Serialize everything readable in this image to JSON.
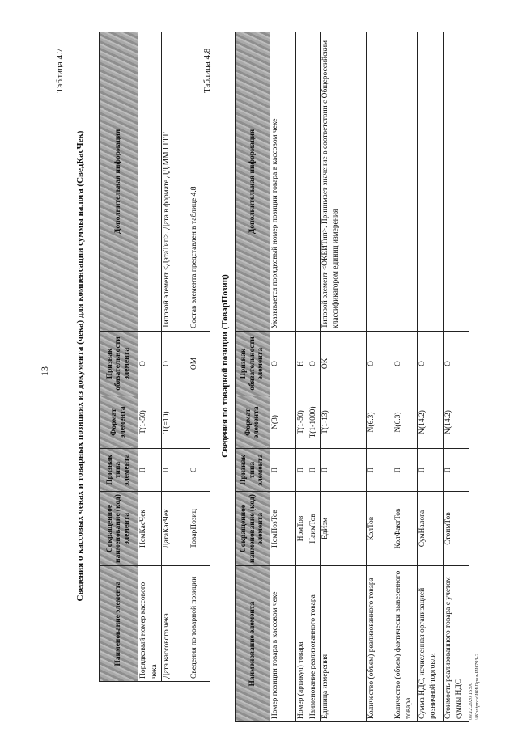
{
  "page_number": "13",
  "table1": {
    "label": "Таблица 4.7",
    "title": "Сведения о кассовых чеках и товарных позициях из документа (чека) для компенсации суммы налога (СведКасЧек)",
    "headers": [
      "Наименование элемента",
      "Сокращенное наименование (код) элемента",
      "Признак типа элемента",
      "Формат элемента",
      "Признак обязательности элемента",
      "Дополнительная информация"
    ],
    "rows": [
      [
        "Порядковый номер кассового чека",
        "НомКасЧек",
        "П",
        "T(1-50)",
        "О",
        ""
      ],
      [
        "Дата кассового чека",
        "ДатаКасЧек",
        "П",
        "T(=10)",
        "О",
        "Типовой элемент <ДатаТип>. Дата в формате ДД.ММ.ГГГГ"
      ],
      [
        "Сведения по товарной позиции",
        "ТоварПозиц",
        "С",
        "",
        "ОМ",
        "Состав элемента представлен в таблице 4.8"
      ]
    ]
  },
  "table2": {
    "label": "Таблица 4.8",
    "title": "Сведения по товарной позиции (ТоварПозиц)",
    "headers": [
      "Наименование элемента",
      "Сокращенное наименование (код) элемента",
      "Признак типа элемента",
      "Формат элемента",
      "Признак обязательности элемента",
      "Дополнительная информация"
    ],
    "rows": [
      [
        "Номер позиции товара в кассовом чеке",
        "НомПозТов",
        "П",
        "N(3)",
        "О",
        "Указывается порядковый номер позиции товара в кассовом чеке"
      ],
      [
        "Номер (артикул) товара",
        "НомТов",
        "П",
        "T(1-50)",
        "Н",
        ""
      ],
      [
        "Наименование реализованного товара",
        "НаимТов",
        "П",
        "T(1-1000)",
        "О",
        ""
      ],
      [
        "Единица измерения",
        "ЕдИзм",
        "П",
        "T(1-13)",
        "ОК",
        "Типовой элемент <ОКЕИТип>. Принимает значение в соответствии с Общероссийским классификатором единиц измерения"
      ],
      [
        "Количество (объем) реализованного товара",
        "КолТов",
        "П",
        "N(6.3)",
        "О",
        ""
      ],
      [
        "Количество (объем) фактически вывезенного товара",
        "КолФактТов",
        "П",
        "N(6.3)",
        "О",
        ""
      ],
      [
        "Сумма НДС, исчисленная организацией розничной торговли",
        "СумНалога",
        "П",
        "N(14.2)",
        "О",
        ""
      ],
      [
        "Стоимость реализованного товара с учетом суммы НДС",
        "СтоимТов",
        "П",
        "N(14.2)",
        "О",
        ""
      ]
    ]
  },
  "footer": {
    "line1": "09.12.2020 15:00",
    "line2": "\\\\Kontprav\\ИИ\\Прил-ИИ793-2"
  }
}
